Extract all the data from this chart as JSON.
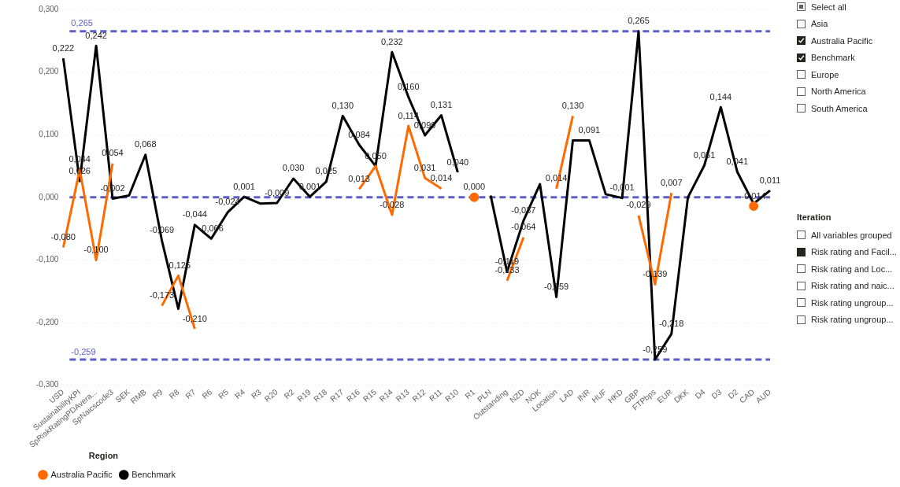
{
  "chart_data": [
    {
      "type": "line",
      "categories": [
        "USD",
        "SustainabilityKPI",
        "SpRiskRatingPDAvera...",
        "SpNaicscode3",
        "SEK",
        "RMB",
        "R9",
        "R8",
        "R7",
        "R6",
        "R5",
        "R4",
        "R3",
        "R20",
        "R2",
        "R19",
        "R18",
        "R17",
        "R16",
        "R15",
        "R14",
        "R13",
        "R12",
        "R11",
        "R10",
        "R1",
        "PLN",
        "Outstanding",
        "NZD",
        "NOK",
        "Location",
        "LAD",
        "INR",
        "HUF",
        "HKD",
        "GBP",
        "FTPbps",
        "EUR",
        "DKK",
        "D4",
        "D3",
        "D2",
        "CAD",
        "AUD"
      ],
      "series": [
        {
          "name": "Australia Pacific",
          "color": "#ff6a00",
          "values": [
            -0.08,
            0.044,
            -0.1,
            0.054,
            null,
            null,
            -0.173,
            -0.125,
            -0.21,
            null,
            null,
            null,
            null,
            null,
            null,
            null,
            null,
            null,
            0.013,
            0.05,
            -0.028,
            0.114,
            0.031,
            0.014,
            null,
            0.0,
            null,
            -0.133,
            -0.064,
            null,
            0.014,
            0.13,
            null,
            null,
            null,
            -0.029,
            -0.139,
            0.007,
            null,
            null,
            null,
            null,
            -0.014,
            null
          ],
          "value_labels": [
            "-0,080",
            "0,044",
            "-0,100",
            "0,054",
            null,
            null,
            "-0,173",
            "-0,125",
            "-0,210",
            null,
            null,
            null,
            null,
            null,
            null,
            null,
            null,
            null,
            "0,013",
            "0,050",
            "-0,028",
            "0,114",
            "0,031",
            "0,014",
            null,
            "0,000",
            null,
            "-0,133",
            "-0,064",
            null,
            "0,014",
            "0,130",
            null,
            null,
            null,
            "-0,029",
            "-0,139",
            "0,007",
            null,
            null,
            null,
            null,
            "-0,014",
            null
          ]
        },
        {
          "name": "Benchmark",
          "color": "#000000",
          "values": [
            0.222,
            0.026,
            0.242,
            -0.002,
            0.003,
            0.068,
            -0.069,
            -0.178,
            -0.044,
            -0.066,
            -0.024,
            0.001,
            -0.01,
            -0.009,
            0.03,
            0.001,
            0.025,
            0.13,
            0.084,
            0.05,
            0.232,
            0.16,
            0.099,
            0.131,
            0.04,
            null,
            0.003,
            -0.119,
            -0.037,
            0.021,
            -0.159,
            0.091,
            0.091,
            0.005,
            -0.001,
            0.265,
            -0.259,
            -0.218,
            0.0,
            0.051,
            0.144,
            0.041,
            -0.01,
            0.011
          ],
          "value_labels": [
            "0,222",
            "0,026",
            "0,242",
            "-0,002",
            null,
            "0,068",
            "-0,069",
            null,
            "-0,044",
            "-0,066",
            "-0,024",
            "0,001",
            null,
            "-0,009",
            "0,030",
            "0,001",
            "0,025",
            "0,130",
            "0,084",
            null,
            "0,232",
            "0,160",
            "0,099",
            "0,131",
            "0,040",
            null,
            null,
            "-0,119",
            "-0,037",
            null,
            "-0,159",
            null,
            "0,091",
            null,
            "-0,001",
            "0,265",
            "-0,259",
            "-0,218",
            null,
            "0,051",
            "0,144",
            "0,041",
            null,
            "0,011"
          ]
        }
      ],
      "ylim": [
        -0.3,
        0.3
      ],
      "yticks": [
        {
          "value": -0.3,
          "label": "-0,300"
        },
        {
          "value": -0.2,
          "label": "-0,200"
        },
        {
          "value": -0.1,
          "label": "-0,100"
        },
        {
          "value": 0,
          "label": "0,000"
        },
        {
          "value": 0.1,
          "label": "0,100"
        },
        {
          "value": 0.2,
          "label": "0,200"
        },
        {
          "value": 0.3,
          "label": "0,300"
        }
      ],
      "ref_lines": [
        {
          "axis": "y",
          "value": 0.265,
          "label": "0,265",
          "color": "#5b5fc7",
          "line_style": "dashed"
        },
        {
          "axis": "y",
          "value": 0,
          "label": null,
          "color": "#5b5fc7",
          "line_style": "dashed"
        },
        {
          "axis": "y",
          "value": -0.259,
          "label": "-0,259",
          "color": "#5b5fc7",
          "line_style": "dashed"
        }
      ],
      "grid": "y",
      "legend": "bottom left",
      "legend_title": "Region",
      "marker": "none",
      "line_style": "solid"
    },
    {
      "type": "other",
      "annotations": [
        "Select all",
        "Asia",
        "Australia Pacific",
        "Benchmark",
        "Europe",
        "North America",
        "South America"
      ]
    },
    {
      "type": "other",
      "title": "Iteration",
      "annotations": [
        "All variables grouped",
        "Risk rating and Facil...",
        "Risk rating and Loc...",
        "Risk rating and naic...",
        "Risk rating ungroup...",
        "Risk rating ungroup..."
      ]
    }
  ]
}
